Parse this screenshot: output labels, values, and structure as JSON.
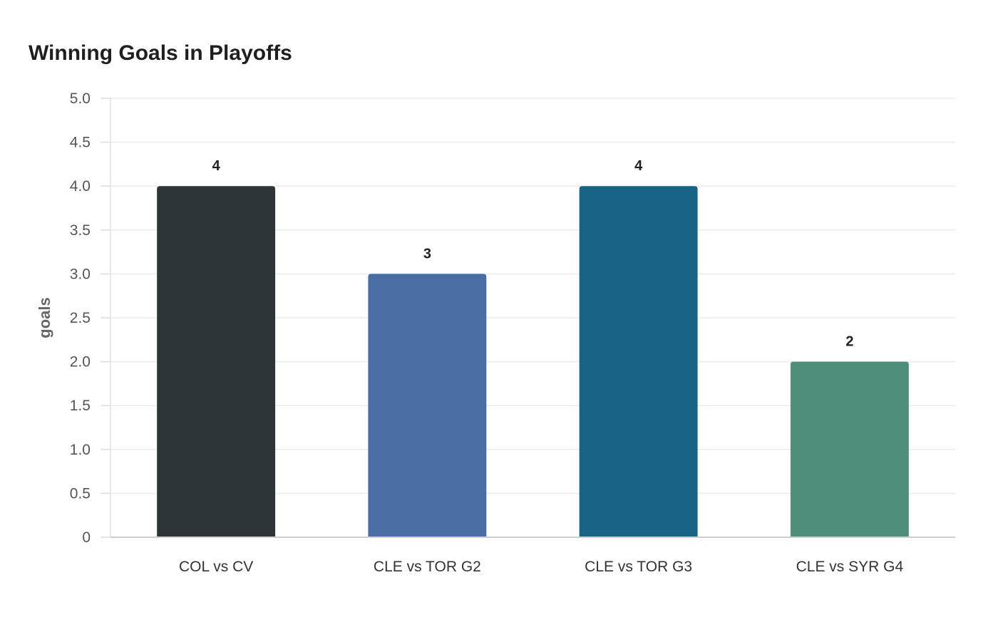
{
  "chart_data": {
    "type": "bar",
    "title": "Winning Goals in Playoffs",
    "xlabel": "",
    "ylabel": "goals",
    "categories": [
      "COL vs CV",
      "CLE vs TOR G2",
      "CLE vs TOR G3",
      "CLE vs SYR G4"
    ],
    "values": [
      4,
      3,
      4,
      2
    ],
    "value_labels": [
      "4",
      "3",
      "4",
      "2"
    ],
    "colors": [
      "#2e3538",
      "#4a6ea3",
      "#186286",
      "#4f8e7b"
    ],
    "ylim": [
      0,
      5
    ],
    "yticks": [
      "0",
      "0.5",
      "1.0",
      "1.5",
      "2.0",
      "2.5",
      "3.0",
      "3.5",
      "4.0",
      "4.5",
      "5.0"
    ],
    "ytick_values": [
      0,
      0.5,
      1,
      1.5,
      2,
      2.5,
      3,
      3.5,
      4,
      4.5,
      5
    ],
    "grid": true,
    "legend": "none"
  }
}
